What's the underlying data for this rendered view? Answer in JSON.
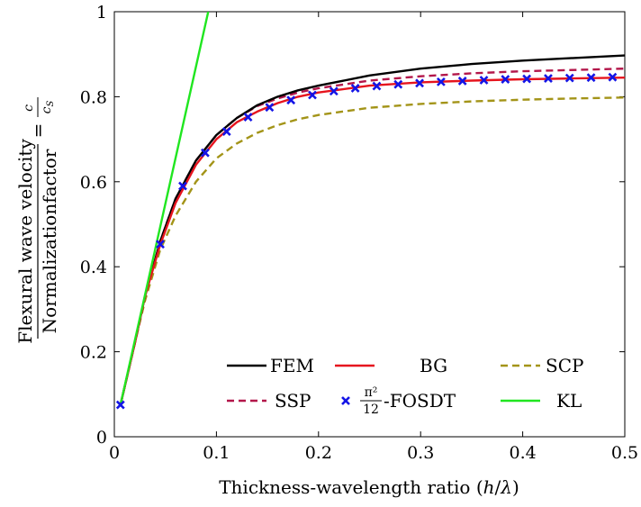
{
  "chart_data": {
    "type": "line",
    "xlabel": "Thickness-wavelength ratio (h/λ)",
    "ylabel": {
      "numerator": "Flexural wave velocity",
      "denominator": "Normalizationfactor",
      "equals": "=",
      "ratio_numerator": "c",
      "ratio_denominator": "cS"
    },
    "xlim": [
      0,
      0.5
    ],
    "ylim": [
      0,
      1
    ],
    "xticks": [
      0,
      0.1,
      0.2,
      0.3,
      0.4,
      0.5
    ],
    "xtick_labels": [
      "0",
      "0.1",
      "0.2",
      "0.3",
      "0.4",
      "0.5"
    ],
    "yticks": [
      0,
      0.2,
      0.4,
      0.6,
      0.8,
      1
    ],
    "ytick_labels": [
      "0",
      "0.2",
      "0.4",
      "0.6",
      "0.8",
      "1"
    ],
    "grid": false,
    "legend_position": "bottom-right",
    "series": [
      {
        "name": "FEM",
        "color": "#000000",
        "style": "solid",
        "x": [
          0.006,
          0.02,
          0.03,
          0.045,
          0.06,
          0.08,
          0.1,
          0.12,
          0.14,
          0.16,
          0.18,
          0.2,
          0.25,
          0.3,
          0.35,
          0.4,
          0.45,
          0.5
        ],
        "y": [
          0.075,
          0.22,
          0.33,
          0.46,
          0.56,
          0.65,
          0.71,
          0.75,
          0.78,
          0.8,
          0.815,
          0.826,
          0.85,
          0.866,
          0.877,
          0.885,
          0.891,
          0.897
        ]
      },
      {
        "name": "BG",
        "color": "#e6141e",
        "style": "solid",
        "x": [
          0.006,
          0.02,
          0.03,
          0.045,
          0.06,
          0.08,
          0.1,
          0.12,
          0.14,
          0.16,
          0.18,
          0.2,
          0.25,
          0.3,
          0.35,
          0.4,
          0.45,
          0.5
        ],
        "y": [
          0.075,
          0.22,
          0.33,
          0.452,
          0.55,
          0.64,
          0.7,
          0.74,
          0.765,
          0.785,
          0.8,
          0.81,
          0.826,
          0.834,
          0.838,
          0.841,
          0.843,
          0.845
        ]
      },
      {
        "name": "SCP",
        "color": "#a39418",
        "style": "dashed",
        "x": [
          0.006,
          0.02,
          0.03,
          0.045,
          0.06,
          0.08,
          0.1,
          0.12,
          0.14,
          0.16,
          0.18,
          0.2,
          0.25,
          0.3,
          0.35,
          0.4,
          0.45,
          0.5
        ],
        "y": [
          0.075,
          0.22,
          0.32,
          0.44,
          0.52,
          0.6,
          0.655,
          0.69,
          0.715,
          0.733,
          0.747,
          0.757,
          0.774,
          0.783,
          0.789,
          0.793,
          0.796,
          0.798
        ]
      },
      {
        "name": "SSP",
        "color": "#b3164a",
        "style": "dashed",
        "x": [
          0.006,
          0.02,
          0.03,
          0.045,
          0.06,
          0.08,
          0.1,
          0.12,
          0.14,
          0.16,
          0.18,
          0.2,
          0.25,
          0.3,
          0.35,
          0.4,
          0.45,
          0.5
        ],
        "y": [
          0.075,
          0.22,
          0.33,
          0.46,
          0.56,
          0.65,
          0.71,
          0.75,
          0.778,
          0.796,
          0.81,
          0.82,
          0.838,
          0.848,
          0.855,
          0.86,
          0.863,
          0.866
        ]
      },
      {
        "name": "π²/12-FOSDT",
        "legend_fraction": {
          "numerator": "π²",
          "denominator": "12",
          "suffix": "-FOSDT"
        },
        "color": "#1414e6",
        "style": "markers",
        "x": [
          0.006,
          0.045,
          0.067,
          0.089,
          0.11,
          0.131,
          0.152,
          0.173,
          0.194,
          0.215,
          0.236,
          0.257,
          0.278,
          0.299,
          0.32,
          0.341,
          0.362,
          0.383,
          0.404,
          0.425,
          0.446,
          0.467,
          0.488
        ],
        "y": [
          0.075,
          0.453,
          0.59,
          0.668,
          0.718,
          0.752,
          0.775,
          0.792,
          0.804,
          0.813,
          0.82,
          0.825,
          0.829,
          0.832,
          0.835,
          0.837,
          0.839,
          0.841,
          0.842,
          0.843,
          0.844,
          0.845,
          0.846
        ]
      },
      {
        "name": "KL",
        "color": "#20e620",
        "style": "solid",
        "x": [
          0.006,
          0.092
        ],
        "y": [
          0.075,
          1.0
        ]
      }
    ]
  }
}
